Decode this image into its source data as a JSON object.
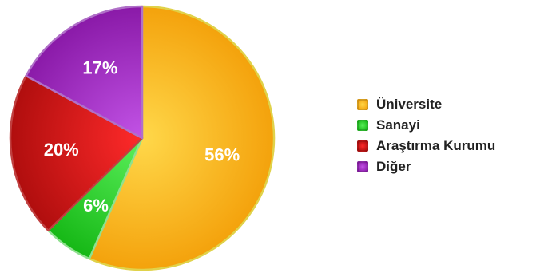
{
  "chart_data": {
    "type": "pie",
    "title": "",
    "start_angle_deg": 0,
    "direction": "clockwise",
    "slices": [
      {
        "label": "Üniversite",
        "value": 56,
        "display": "56%",
        "color": "#f4a20c",
        "highlight": "#ffd84a",
        "edge": "#e0d24a"
      },
      {
        "label": "Sanayi",
        "value": 6,
        "display": "6%",
        "color": "#16b816",
        "highlight": "#5cf05c",
        "edge": "#8fe08f"
      },
      {
        "label": "Araştırma Kurumu",
        "value": 20,
        "display": "20%",
        "color": "#b00e0e",
        "highlight": "#ff2a2a",
        "edge": "#c04040"
      },
      {
        "label": "Diğer",
        "value": 17,
        "display": "17%",
        "color": "#8a1aa8",
        "highlight": "#c253e6",
        "edge": "#b070c8"
      }
    ],
    "legend_placement": "right"
  }
}
